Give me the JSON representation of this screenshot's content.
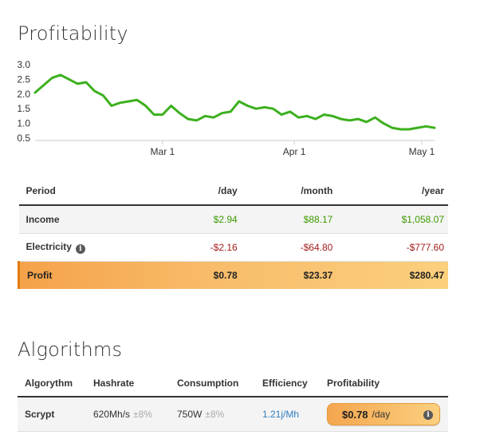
{
  "profitability": {
    "title": "Profitability",
    "table": {
      "headers": [
        "Period",
        "/day",
        "/month",
        "/year"
      ],
      "income": {
        "label": "Income",
        "day": "$2.94",
        "month": "$88.17",
        "year": "$1,058.07"
      },
      "electricity": {
        "label": "Electricity",
        "day": "-$2.16",
        "month": "-$64.80",
        "year": "-$777.60"
      },
      "profit": {
        "label": "Profit",
        "day": "$0.78",
        "month": "$23.37",
        "year": "$280.47"
      }
    }
  },
  "chart_data": {
    "type": "line",
    "title": "",
    "xlabel": "",
    "ylabel": "",
    "y_tick_labels": [
      "3.0",
      "2.5",
      "2.0",
      "1.5",
      "1.0",
      "0.5"
    ],
    "y_ticks": [
      3.0,
      2.5,
      2.0,
      1.5,
      1.0,
      0.5
    ],
    "ylim": [
      0.5,
      3.0
    ],
    "x_tick_labels": [
      "Mar 1",
      "Apr 1",
      "May 1"
    ],
    "x_tick_dates": [
      "2017-03-01",
      "2017-04-01",
      "2017-05-01"
    ],
    "xlim": [
      "2017-01-30",
      "2017-05-04"
    ],
    "grid": false,
    "color": "#3cb01e",
    "series": [
      {
        "x": [
          "2017-01-30",
          "2017-02-01",
          "2017-02-03",
          "2017-02-05",
          "2017-02-07",
          "2017-02-09",
          "2017-02-11",
          "2017-02-13",
          "2017-02-15",
          "2017-02-17",
          "2017-02-19",
          "2017-02-21",
          "2017-02-23",
          "2017-02-25",
          "2017-02-27",
          "2017-03-01",
          "2017-03-03",
          "2017-03-05",
          "2017-03-07",
          "2017-03-09",
          "2017-03-11",
          "2017-03-13",
          "2017-03-15",
          "2017-03-17",
          "2017-03-19",
          "2017-03-21",
          "2017-03-23",
          "2017-03-25",
          "2017-03-27",
          "2017-03-29",
          "2017-03-31",
          "2017-04-02",
          "2017-04-04",
          "2017-04-06",
          "2017-04-08",
          "2017-04-10",
          "2017-04-12",
          "2017-04-14",
          "2017-04-16",
          "2017-04-18",
          "2017-04-20",
          "2017-04-22",
          "2017-04-24",
          "2017-04-26",
          "2017-04-28",
          "2017-04-30",
          "2017-05-02",
          "2017-05-04"
        ],
        "y": [
          2.05,
          2.3,
          2.55,
          2.65,
          2.5,
          2.35,
          2.4,
          2.1,
          1.95,
          1.6,
          1.7,
          1.75,
          1.8,
          1.6,
          1.3,
          1.3,
          1.6,
          1.35,
          1.15,
          1.1,
          1.25,
          1.2,
          1.35,
          1.4,
          1.75,
          1.6,
          1.5,
          1.55,
          1.5,
          1.3,
          1.4,
          1.2,
          1.25,
          1.15,
          1.3,
          1.25,
          1.15,
          1.1,
          1.15,
          1.05,
          1.2,
          1.0,
          0.85,
          0.8,
          0.8,
          0.85,
          0.9,
          0.85
        ]
      }
    ]
  },
  "algorithms": {
    "title": "Algorithms",
    "headers": [
      "Algorythm",
      "Hashrate",
      "Consumption",
      "Efficiency",
      "Profitability"
    ],
    "rows": [
      {
        "name": "Scrypt",
        "hashrate": "620Mh/s",
        "hashrate_var": "±8%",
        "consumption": "750W",
        "consumption_var": "±8%",
        "efficiency": "1.21j/Mh",
        "profit_value": "$0.78",
        "profit_unit": "/day"
      }
    ]
  }
}
